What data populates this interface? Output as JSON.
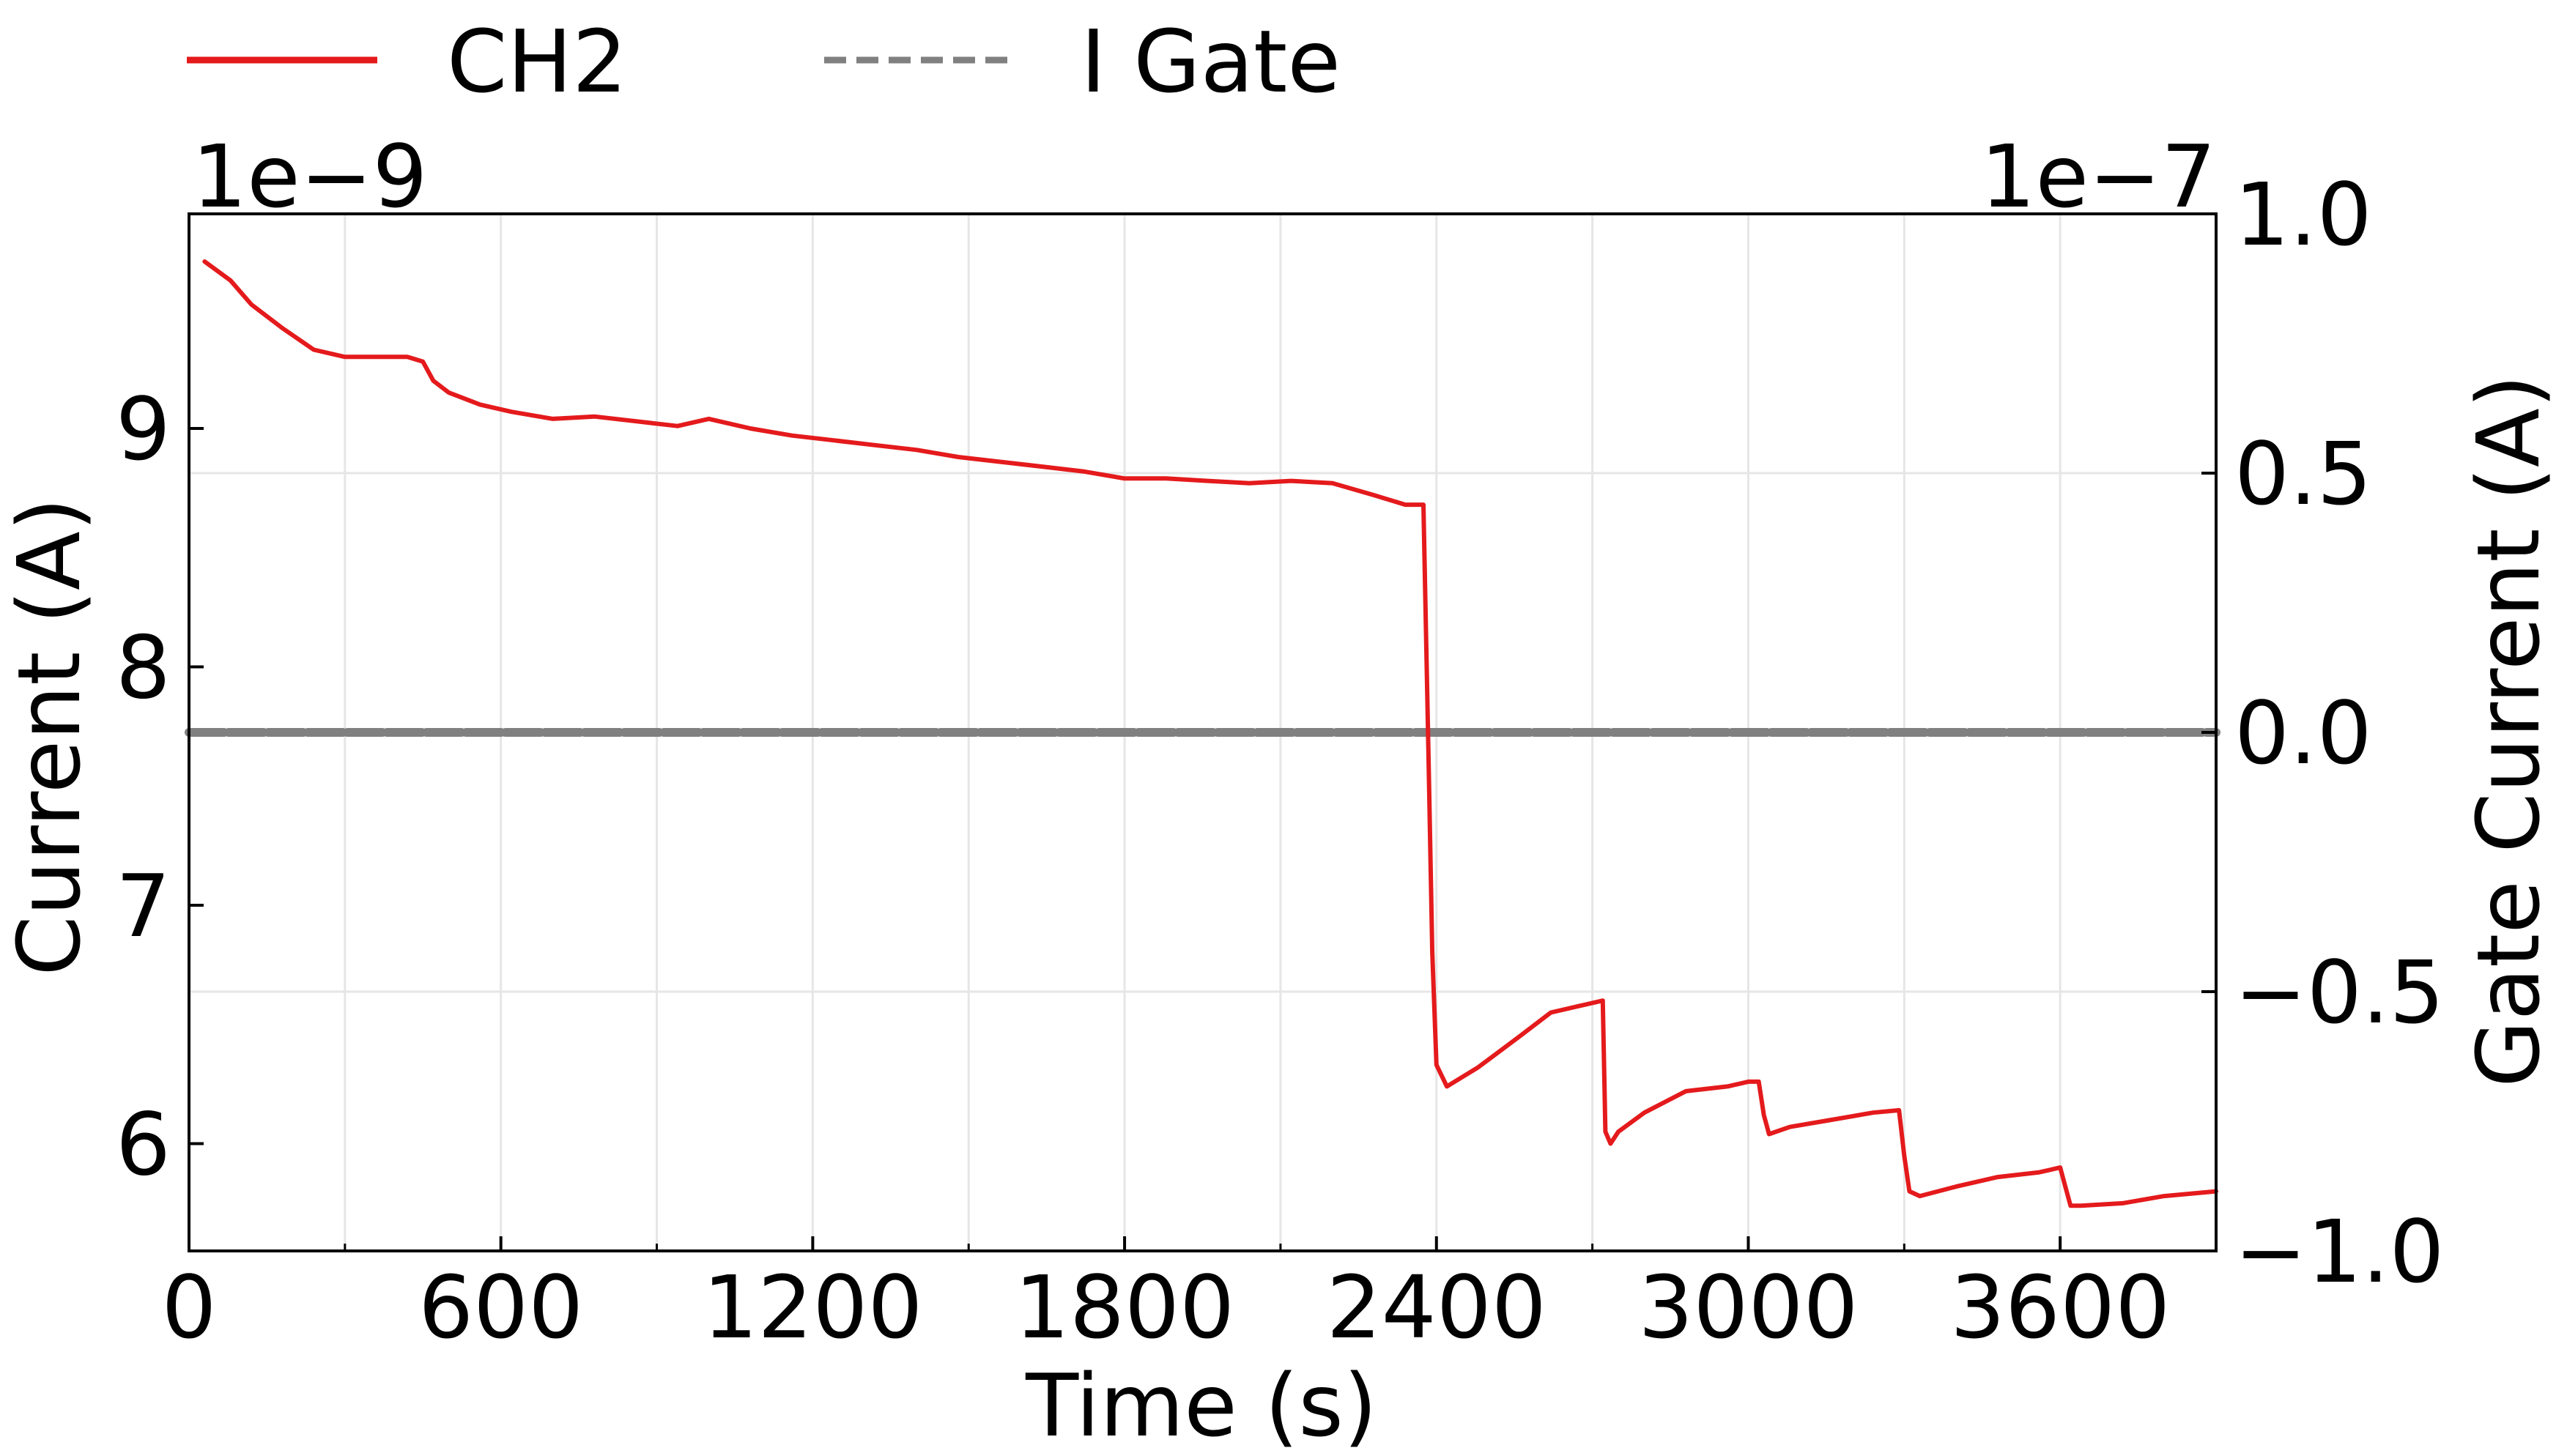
{
  "chart_data": {
    "type": "line",
    "xlabel": "Time (s)",
    "ylabel": "Current (A)",
    "y2label": "Gate Current (A)",
    "y_offset_text": "1e−9",
    "y2_offset_text": "1e−7",
    "xlim": [
      0,
      3900
    ],
    "ylim": [
      5.55,
      9.9
    ],
    "y2lim": [
      -1.0,
      1.0
    ],
    "x_ticks": [
      0,
      600,
      1200,
      1800,
      2400,
      3000,
      3600
    ],
    "x_tick_labels": [
      "0",
      "600",
      "1200",
      "1800",
      "2400",
      "3000",
      "3600"
    ],
    "y_ticks": [
      6,
      7,
      8,
      9
    ],
    "y_tick_labels": [
      "6",
      "7",
      "8",
      "9"
    ],
    "y2_ticks": [
      -1.0,
      -0.5,
      0.0,
      0.5,
      1.0
    ],
    "y2_tick_labels": [
      "−1.0",
      "−0.5",
      "0.0",
      "0.5",
      "1.0"
    ],
    "grid": true,
    "legend": {
      "placement": "top-left outside",
      "entries": [
        "CH2",
        "I Gate"
      ]
    },
    "series": [
      {
        "name": "CH2",
        "axis": "left",
        "color": "#e41a1c",
        "style": "solid",
        "x": [
          30,
          80,
          120,
          180,
          240,
          300,
          360,
          420,
          450,
          470,
          500,
          560,
          620,
          700,
          780,
          860,
          940,
          1000,
          1080,
          1160,
          1240,
          1320,
          1400,
          1480,
          1560,
          1640,
          1720,
          1800,
          1880,
          1960,
          2040,
          2120,
          2200,
          2280,
          2340,
          2375,
          2385,
          2392,
          2400,
          2420,
          2480,
          2560,
          2620,
          2680,
          2720,
          2725,
          2735,
          2750,
          2800,
          2880,
          2960,
          3000,
          3020,
          3030,
          3040,
          3080,
          3160,
          3240,
          3290,
          3300,
          3310,
          3330,
          3400,
          3480,
          3560,
          3600,
          3610,
          3620,
          3640,
          3720,
          3800,
          3900
        ],
        "y": [
          9.7,
          9.62,
          9.52,
          9.42,
          9.33,
          9.3,
          9.3,
          9.3,
          9.28,
          9.2,
          9.15,
          9.1,
          9.07,
          9.04,
          9.05,
          9.03,
          9.01,
          9.04,
          9.0,
          8.97,
          8.95,
          8.93,
          8.91,
          8.88,
          8.86,
          8.84,
          8.82,
          8.79,
          8.79,
          8.78,
          8.77,
          8.78,
          8.77,
          8.72,
          8.68,
          8.68,
          7.6,
          6.8,
          6.33,
          6.24,
          6.32,
          6.45,
          6.55,
          6.58,
          6.6,
          6.05,
          6.0,
          6.05,
          6.13,
          6.22,
          6.24,
          6.26,
          6.26,
          6.12,
          6.04,
          6.07,
          6.1,
          6.13,
          6.14,
          5.95,
          5.8,
          5.78,
          5.82,
          5.86,
          5.88,
          5.9,
          5.82,
          5.74,
          5.74,
          5.75,
          5.78,
          5.8
        ]
      },
      {
        "name": "I Gate",
        "axis": "right",
        "color": "#808080",
        "style": "dashed",
        "x": [
          0,
          3900
        ],
        "y": [
          0.0,
          0.0
        ]
      }
    ]
  }
}
